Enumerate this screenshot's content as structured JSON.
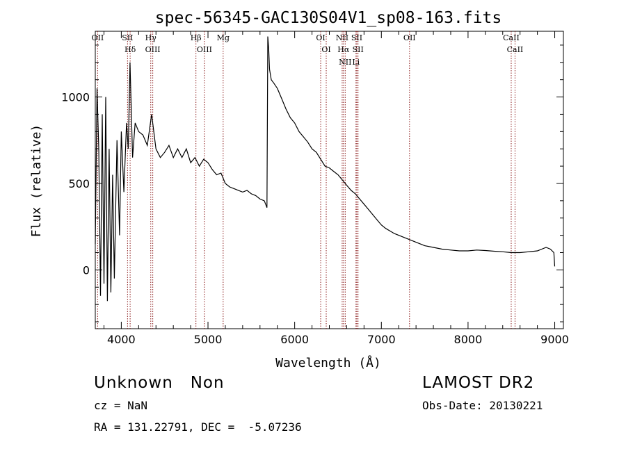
{
  "chart_data": {
    "type": "line",
    "title": "spec-56345-GAC130S04V1_sp08-163.fits",
    "xlabel": "Wavelength (Å)",
    "ylabel": "Flux (relative)",
    "xlim": [
      3700,
      9100
    ],
    "ylim": [
      -340,
      1380
    ],
    "xticks": [
      "4000",
      "5000",
      "6000",
      "7000",
      "8000",
      "9000"
    ],
    "yticks": [
      "0",
      "500",
      "1000"
    ],
    "grid": false,
    "series": [
      {
        "color": "#000000",
        "x": [
          3700,
          3720,
          3740,
          3760,
          3780,
          3800,
          3820,
          3840,
          3860,
          3880,
          3900,
          3920,
          3950,
          3980,
          4000,
          4030,
          4060,
          4080,
          4100,
          4130,
          4160,
          4200,
          4250,
          4300,
          4350,
          4400,
          4450,
          4500,
          4550,
          4600,
          4650,
          4700,
          4750,
          4800,
          4850,
          4900,
          4950,
          5000,
          5050,
          5100,
          5150,
          5200,
          5250,
          5300,
          5350,
          5400,
          5450,
          5500,
          5550,
          5600,
          5650,
          5680,
          5690,
          5700,
          5710,
          5730,
          5760,
          5800,
          5850,
          5900,
          5950,
          6000,
          6050,
          6100,
          6150,
          6200,
          6250,
          6300,
          6350,
          6400,
          6450,
          6500,
          6550,
          6600,
          6650,
          6700,
          6750,
          6800,
          6850,
          6900,
          6950,
          7000,
          7050,
          7100,
          7150,
          7200,
          7250,
          7300,
          7350,
          7400,
          7450,
          7500,
          7600,
          7700,
          7800,
          7900,
          8000,
          8100,
          8200,
          8300,
          8400,
          8500,
          8600,
          8700,
          8800,
          8900,
          8950,
          8990,
          9000
        ],
        "y": [
          150,
          1050,
          700,
          -150,
          900,
          -80,
          1000,
          -180,
          700,
          -130,
          550,
          -50,
          750,
          200,
          800,
          450,
          850,
          700,
          1200,
          650,
          850,
          800,
          780,
          720,
          900,
          700,
          650,
          680,
          720,
          650,
          700,
          650,
          700,
          620,
          650,
          600,
          640,
          620,
          580,
          550,
          560,
          500,
          480,
          470,
          460,
          450,
          460,
          440,
          430,
          410,
          400,
          360,
          1350,
          1280,
          1160,
          1100,
          1080,
          1050,
          990,
          930,
          880,
          850,
          800,
          770,
          740,
          700,
          680,
          640,
          600,
          590,
          570,
          550,
          520,
          490,
          460,
          440,
          410,
          380,
          350,
          320,
          290,
          260,
          240,
          225,
          210,
          200,
          190,
          180,
          170,
          160,
          150,
          140,
          130,
          120,
          115,
          110,
          110,
          115,
          112,
          108,
          105,
          100,
          100,
          105,
          110,
          130,
          120,
          100,
          20
        ]
      }
    ],
    "lines": [
      {
        "label": "OII",
        "x": 3727
      },
      {
        "label": "SII",
        "x": 4072
      },
      {
        "label": "Hδ",
        "x": 4102
      },
      {
        "label": "Hγ",
        "x": 4340
      },
      {
        "label": "OIII",
        "x": 4363
      },
      {
        "label": "Hβ",
        "x": 4861
      },
      {
        "label": "OIII",
        "x": 4959
      },
      {
        "label": "Mg",
        "x": 5175
      },
      {
        "label": "OI",
        "x": 6300
      },
      {
        "label": "OI",
        "x": 6364
      },
      {
        "label": "NII",
        "x": 6548
      },
      {
        "label": "Hα",
        "x": 6563
      },
      {
        "label": "NII",
        "x": 6583
      },
      {
        "label": "Li",
        "x": 6707
      },
      {
        "label": "SII",
        "x": 6717
      },
      {
        "label": "SII",
        "x": 6731
      },
      {
        "label": "OII",
        "x": 7325
      },
      {
        "label": "CaII",
        "x": 8498
      },
      {
        "label": "CaII",
        "x": 8542
      }
    ]
  },
  "info": {
    "classification": "Unknown   Non",
    "survey": "LAMOST DR2",
    "redshift": "cz = NaN",
    "obs_date": "Obs-Date: 20130221",
    "coords": "RA = 131.22791, DEC =  -5.07236"
  }
}
